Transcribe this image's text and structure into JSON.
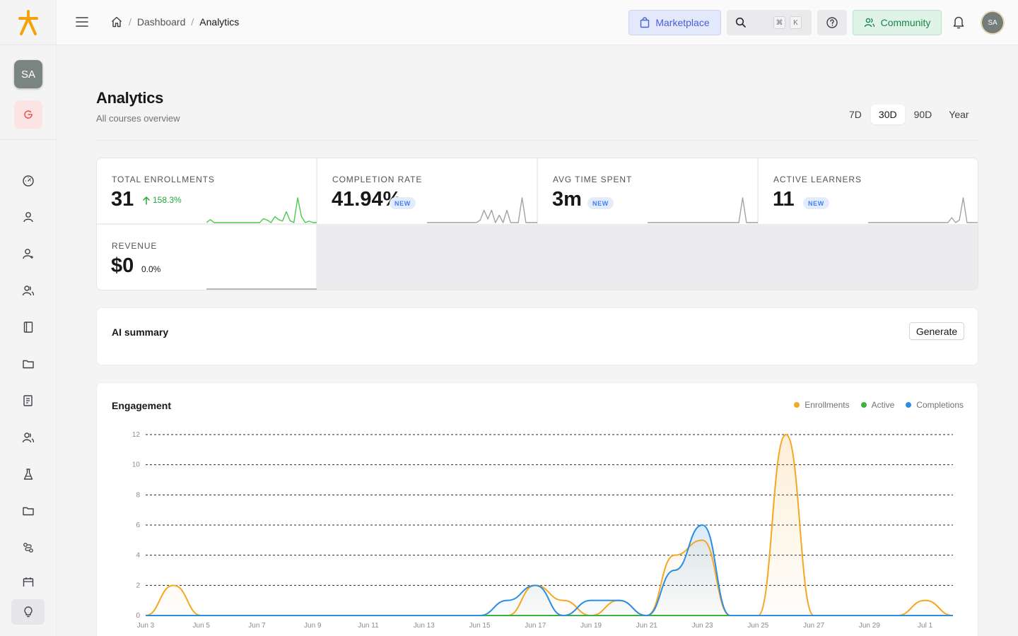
{
  "breadcrumb": {
    "home": "Home",
    "items": [
      "Dashboard",
      "Analytics"
    ]
  },
  "header": {
    "marketplace_label": "Marketplace",
    "search_shortcut": [
      "⌘",
      "K"
    ],
    "community_label": "Community",
    "user_initials": "SA"
  },
  "sidebar": {
    "workspace_initials": "SA",
    "nav_icons": [
      "dashboard-icon",
      "user-icon",
      "user-plus-icon",
      "users-icon",
      "book-icon",
      "folder-icon",
      "report-icon",
      "team-icon",
      "flask-icon",
      "folder-icon",
      "workflow-icon",
      "calendar-icon"
    ],
    "bottom_icon": "lightbulb-icon"
  },
  "page": {
    "title": "Analytics",
    "subtitle": "All courses overview",
    "ranges": [
      "7D",
      "30D",
      "90D",
      "Year"
    ],
    "active_range": "30D"
  },
  "stats": [
    {
      "label": "TOTAL ENROLLMENTS",
      "value": "31",
      "trend": "158.3%",
      "trend_dir": "up",
      "spark_color": "#4cc94c",
      "spark": [
        0,
        0.6,
        0,
        0,
        0,
        0,
        0,
        0,
        0,
        0,
        0,
        0,
        0,
        0,
        0,
        0.8,
        0.5,
        0,
        1.2,
        0.6,
        0.3,
        2.2,
        0.4,
        0,
        5,
        1.2,
        0,
        0.3,
        0,
        0
      ]
    },
    {
      "label": "COMPLETION RATE",
      "value": "41.94%",
      "badge": "NEW",
      "spark_color": "#a1a1aa",
      "spark": [
        0,
        0,
        0,
        0,
        0,
        0,
        0,
        0,
        0,
        0,
        0,
        0,
        0,
        0,
        0.2,
        1,
        0.3,
        1,
        0,
        0.6,
        0,
        1,
        0,
        0,
        0,
        2,
        0,
        0,
        0,
        0
      ]
    },
    {
      "label": "AVG TIME SPENT",
      "value": "3m",
      "badge": "NEW",
      "spark_color": "#a1a1aa",
      "spark": [
        0,
        0,
        0,
        0,
        0,
        0,
        0,
        0,
        0,
        0,
        0,
        0,
        0,
        0,
        0,
        0,
        0,
        0,
        0,
        0,
        0,
        0,
        0,
        0,
        0,
        2,
        0,
        0,
        0,
        0
      ]
    },
    {
      "label": "ACTIVE LEARNERS",
      "value": "11",
      "badge": "NEW",
      "spark_color": "#a1a1aa",
      "spark": [
        0,
        0,
        0,
        0,
        0,
        0,
        0,
        0,
        0,
        0,
        0,
        0,
        0,
        0,
        0,
        0,
        0,
        0,
        0,
        0,
        0,
        0,
        0.4,
        0,
        0.2,
        2,
        0,
        0,
        0,
        0
      ]
    },
    {
      "label": "REVENUE",
      "value": "$0",
      "change": "0.0%",
      "spark_color": "#a1a1aa",
      "spark": [
        0,
        0,
        0,
        0,
        0,
        0,
        0,
        0,
        0,
        0,
        0,
        0,
        0,
        0,
        0,
        0,
        0,
        0,
        0,
        0,
        0,
        0,
        0,
        0,
        0,
        0,
        0,
        0,
        0,
        0
      ]
    }
  ],
  "ai_summary": {
    "title": "AI summary",
    "generate_label": "Generate"
  },
  "engagement": {
    "title": "Engagement",
    "legend": [
      {
        "name": "Enrollments",
        "color": "#f5a623"
      },
      {
        "name": "Active",
        "color": "#3cb043"
      },
      {
        "name": "Completions",
        "color": "#2b8de3"
      }
    ]
  },
  "chart_data": {
    "type": "area",
    "title": "Engagement",
    "x_tick_labels": [
      "Jun 3",
      "Jun 5",
      "Jun 7",
      "Jun 9",
      "Jun 11",
      "Jun 13",
      "Jun 15",
      "Jun 17",
      "Jun 19",
      "Jun 21",
      "Jun 23",
      "Jun 25",
      "Jun 27",
      "Jun 29",
      "Jul 1"
    ],
    "y_ticks": [
      0,
      2,
      4,
      6,
      8,
      10,
      12
    ],
    "ylim": [
      0,
      12
    ],
    "grid": true,
    "legend_position": "top-right",
    "x": [
      "Jun 3",
      "Jun 4",
      "Jun 5",
      "Jun 6",
      "Jun 7",
      "Jun 8",
      "Jun 9",
      "Jun 10",
      "Jun 11",
      "Jun 12",
      "Jun 13",
      "Jun 14",
      "Jun 15",
      "Jun 16",
      "Jun 17",
      "Jun 18",
      "Jun 19",
      "Jun 20",
      "Jun 21",
      "Jun 22",
      "Jun 23",
      "Jun 24",
      "Jun 25",
      "Jun 26",
      "Jun 27",
      "Jun 28",
      "Jun 29",
      "Jun 30",
      "Jul 1",
      "Jul 2"
    ],
    "series": [
      {
        "name": "Enrollments",
        "color": "#f5a623",
        "values": [
          0,
          2,
          0,
          0,
          0,
          0,
          0,
          0,
          0,
          0,
          0,
          0,
          0,
          0,
          2,
          1,
          0,
          1,
          0,
          4,
          5,
          0,
          0,
          12,
          0,
          0,
          0,
          0,
          1,
          0
        ]
      },
      {
        "name": "Active",
        "color": "#3cb043",
        "values": [
          0,
          0,
          0,
          0,
          0,
          0,
          0,
          0,
          0,
          0,
          0,
          0,
          0,
          0,
          0,
          0,
          0,
          0,
          0,
          0,
          0,
          0,
          0,
          0,
          0,
          0,
          0,
          0,
          0,
          0
        ]
      },
      {
        "name": "Completions",
        "color": "#2b8de3",
        "values": [
          0,
          0,
          0,
          0,
          0,
          0,
          0,
          0,
          0,
          0,
          0,
          0,
          0,
          1,
          2,
          0,
          1,
          1,
          0,
          3,
          6,
          0,
          0,
          0,
          0,
          0,
          0,
          0,
          0,
          0
        ]
      }
    ]
  }
}
